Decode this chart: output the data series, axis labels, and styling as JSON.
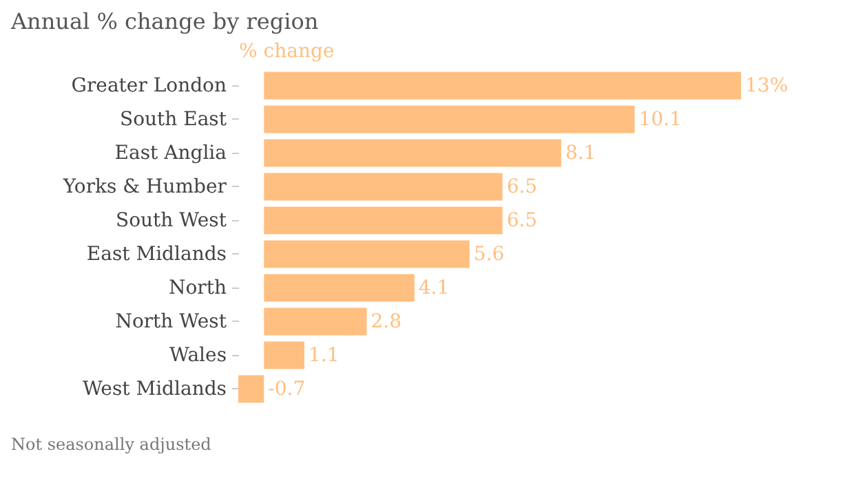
{
  "chart_data": {
    "type": "bar",
    "orientation": "horizontal",
    "title": "Annual % change by region",
    "xlabel": "% change",
    "categories": [
      "Greater London",
      "South East",
      "East Anglia",
      "Yorks & Humber",
      "South West",
      "East Midlands",
      "North",
      "North West",
      "Wales",
      "West Midlands"
    ],
    "values": [
      13,
      10.1,
      8.1,
      6.5,
      6.5,
      5.6,
      4.1,
      2.8,
      1.1,
      -0.7
    ],
    "value_labels": [
      "13%",
      "10.1",
      "8.1",
      "6.5",
      "6.5",
      "5.6",
      "4.1",
      "2.8",
      "1.1",
      "-0.7"
    ],
    "color": "#ffbf80",
    "grid": false,
    "annotations": [
      "Not seasonally adjusted"
    ]
  }
}
